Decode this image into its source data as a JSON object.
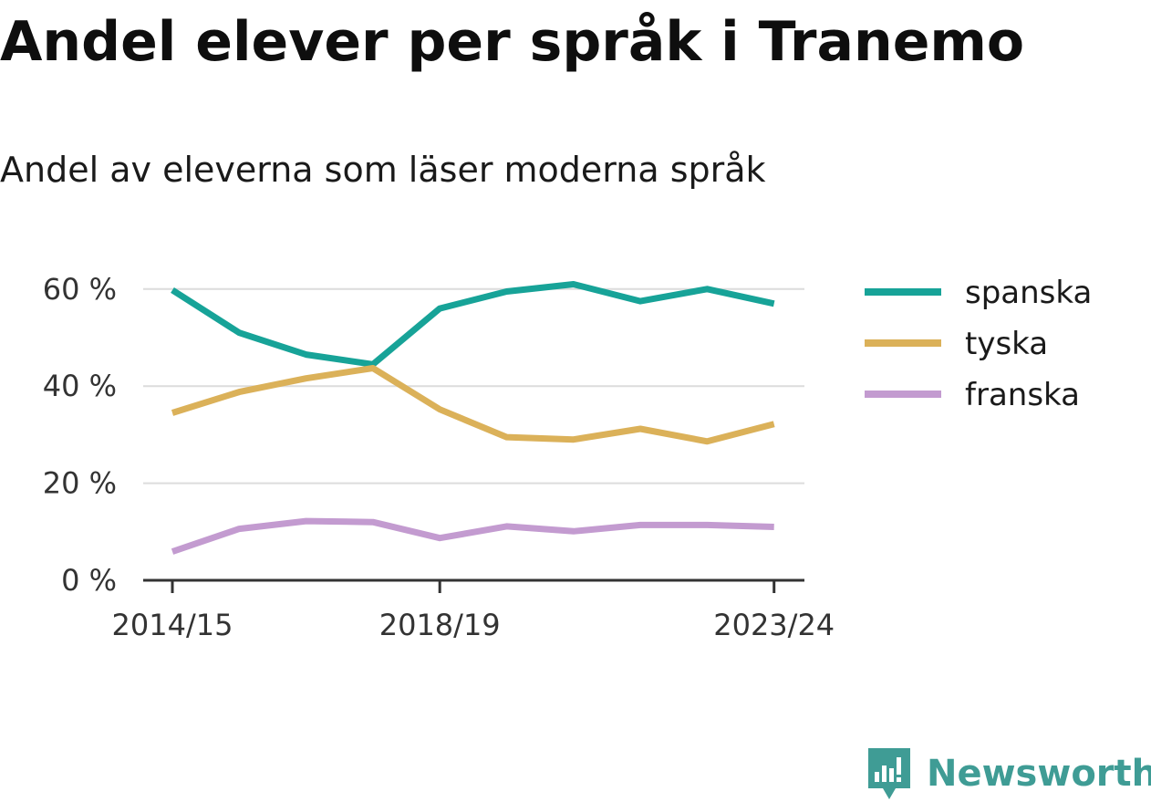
{
  "header": {
    "title": "Andel elever per språk i Tranemo",
    "subtitle": "Andel av eleverna som läser moderna språk"
  },
  "brand": {
    "name": "Newsworthy",
    "color": "#3f9c95",
    "icon": "newsworthy-logo-icon"
  },
  "chart_data": {
    "type": "line",
    "x_tick_labels": [
      "2014/15",
      "2018/19",
      "2023/24"
    ],
    "y_ticks": [
      0,
      20,
      40,
      60
    ],
    "y_tick_labels": [
      "0 %",
      "20 %",
      "40 %",
      "60 %"
    ],
    "ylim": [
      0,
      65
    ],
    "grid": true,
    "legend_position": "right",
    "series": [
      {
        "name": "spanska",
        "color": "#17a398",
        "values": [
          59.8,
          51.0,
          46.5,
          44.5,
          56.0,
          59.5,
          61.0,
          57.5,
          60.0,
          57.0
        ]
      },
      {
        "name": "tyska",
        "color": "#dbb159",
        "values": [
          34.5,
          38.8,
          41.6,
          43.7,
          35.2,
          29.5,
          29.0,
          31.2,
          28.6,
          32.2
        ]
      },
      {
        "name": "franska",
        "color": "#c39bd0",
        "values": [
          5.9,
          10.6,
          12.2,
          12.0,
          8.7,
          11.1,
          10.1,
          11.4,
          11.4,
          11.0
        ]
      }
    ]
  }
}
